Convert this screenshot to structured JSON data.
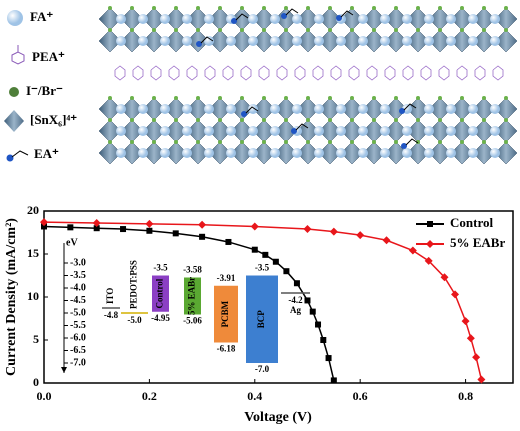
{
  "structure_legend": [
    "FA⁺",
    "PEA⁺",
    "I⁻/Br⁻",
    "[SnX₆]⁴⁺",
    "EA⁺"
  ],
  "chart_data": [
    {
      "type": "line",
      "x_label": "Voltage (V)",
      "y_label": "Current Density (mA/cm²)",
      "xlim": [
        0,
        0.89
      ],
      "ylim": [
        0,
        20
      ],
      "xticks": [
        {
          "value": 0,
          "label": "0.0"
        },
        0.2,
        0.4,
        0.6,
        0.8
      ],
      "yticks": [
        0,
        5,
        10,
        15,
        20
      ],
      "legend": "upper right",
      "series": [
        {
          "name": "Control",
          "color": "#000000",
          "marker": "square",
          "x": [
            0,
            0.05,
            0.1,
            0.15,
            0.2,
            0.25,
            0.3,
            0.35,
            0.4,
            0.42,
            0.44,
            0.46,
            0.48,
            0.5,
            0.51,
            0.52,
            0.53,
            0.54,
            0.55
          ],
          "values": [
            18.2,
            18.1,
            18.0,
            17.9,
            17.7,
            17.4,
            17.0,
            16.4,
            15.5,
            14.9,
            14.1,
            13.0,
            11.6,
            9.6,
            8.3,
            6.8,
            5.0,
            2.9,
            0.3
          ]
        },
        {
          "name": "5% EABr",
          "color": "#e8161b",
          "marker": "diamond",
          "x": [
            0,
            0.1,
            0.2,
            0.3,
            0.4,
            0.5,
            0.55,
            0.6,
            0.65,
            0.7,
            0.73,
            0.76,
            0.78,
            0.8,
            0.81,
            0.82,
            0.83
          ],
          "values": [
            18.7,
            18.6,
            18.5,
            18.4,
            18.2,
            17.9,
            17.6,
            17.2,
            16.6,
            15.4,
            14.2,
            12.3,
            10.3,
            7.2,
            5.2,
            3.0,
            0.4
          ]
        }
      ]
    },
    {
      "type": "energy-level",
      "y_label": "eV",
      "ylim": [
        -7.4,
        -2.2
      ],
      "yticks": [
        {
          "value": -3,
          "label": "-3.0"
        },
        -3.5,
        {
          "value": -4,
          "label": "-4.0"
        },
        -4.5,
        {
          "value": -5,
          "label": "-5.0"
        },
        -5.5,
        {
          "value": -6,
          "label": "-6.0"
        },
        -6.5,
        {
          "value": -7,
          "label": "-7.0"
        }
      ],
      "items": [
        {
          "name": "ITO",
          "color": "#555555",
          "values": [
            -4.8
          ],
          "value_labels": [
            "-4.8"
          ]
        },
        {
          "name": "PEDOT:PSS",
          "color": "#d4b000",
          "values": [
            -5.0
          ],
          "value_labels": [
            "-5.0"
          ]
        },
        {
          "name": "Control",
          "color": "#8b3fc4",
          "values": [
            -3.5,
            -4.95
          ],
          "value_labels": [
            "-3.5",
            "-4.95"
          ]
        },
        {
          "name": "5% EABr",
          "color": "#5aa832",
          "values": [
            -3.58,
            -5.06
          ],
          "value_labels": [
            "-3.58",
            "-5.06"
          ]
        },
        {
          "name": "PCBM",
          "color": "#ef8a3a",
          "values": [
            -3.91,
            -6.18
          ],
          "value_labels": [
            "-3.91",
            "-6.18"
          ]
        },
        {
          "name": "BCP",
          "color": "#3d7fd0",
          "values": [
            -3.5,
            -7.0
          ],
          "value_labels": [
            "-3.5",
            "-7.0"
          ]
        },
        {
          "name": "Ag",
          "color": "#555555",
          "values": [
            -4.2
          ],
          "value_labels": [
            "-4.2"
          ]
        }
      ]
    }
  ]
}
